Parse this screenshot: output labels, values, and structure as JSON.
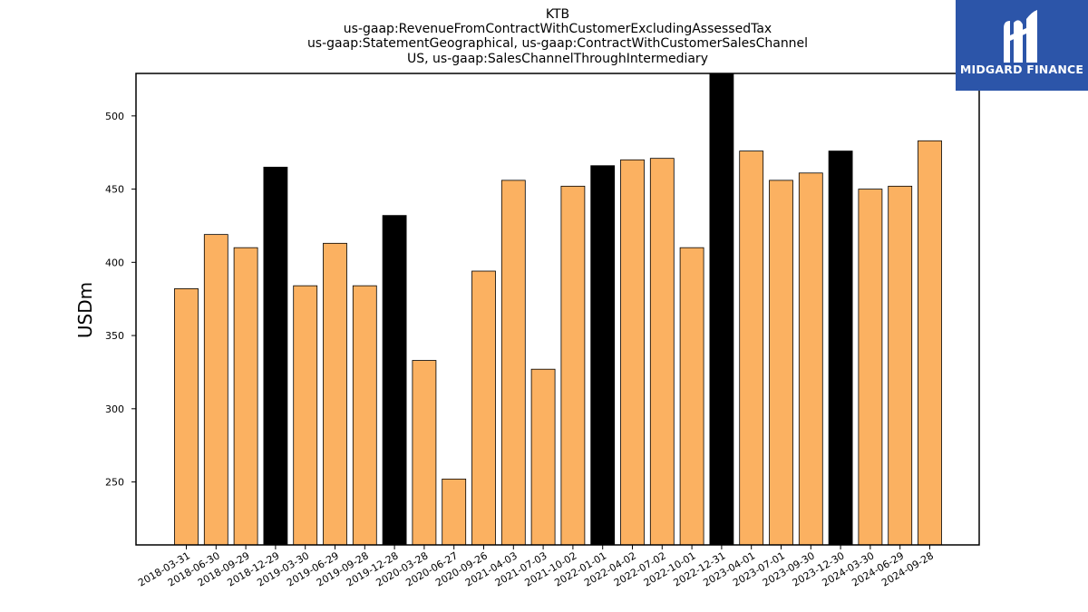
{
  "brand": {
    "name": "MIDGARD FINANCE",
    "color": "#2c55a9",
    "logo_icon": "midgard-m-logo"
  },
  "chart_data": {
    "type": "bar",
    "title": [
      "KTB",
      "us-gaap:RevenueFromContractWithCustomerExcludingAssessedTax",
      "us-gaap:StatementGeographical, us-gaap:ContractWithCustomerSalesChannel",
      "US, us-gaap:SalesChannelThroughIntermediary"
    ],
    "xlabel": "",
    "ylabel": "USDm",
    "ylim": [
      207,
      529
    ],
    "yticks": [
      250,
      300,
      350,
      400,
      450,
      500
    ],
    "grid": false,
    "colors": {
      "quarter": "#fbb161",
      "fiscal_year_end": "#000000",
      "edge": "#000000"
    },
    "categories": [
      "2018-03-31",
      "2018-06-30",
      "2018-09-29",
      "2018-12-29",
      "2019-03-30",
      "2019-06-29",
      "2019-09-28",
      "2019-12-28",
      "2020-03-28",
      "2020-06-27",
      "2020-09-26",
      "2021-04-03",
      "2021-07-03",
      "2021-10-02",
      "2022-01-01",
      "2022-04-02",
      "2022-07-02",
      "2022-10-01",
      "2022-12-31",
      "2023-04-01",
      "2023-07-01",
      "2023-09-30",
      "2023-12-30",
      "2024-03-30",
      "2024-06-29",
      "2024-09-28"
    ],
    "values": [
      382,
      419,
      410,
      465,
      384,
      413,
      384,
      432,
      333,
      252,
      394,
      456,
      327,
      452,
      466,
      470,
      471,
      410,
      529,
      476,
      456,
      461,
      476,
      450,
      452,
      483
    ],
    "highlighted": [
      false,
      false,
      false,
      true,
      false,
      false,
      false,
      true,
      false,
      false,
      false,
      false,
      false,
      false,
      true,
      false,
      false,
      false,
      true,
      false,
      false,
      false,
      true,
      false,
      false,
      false
    ]
  }
}
